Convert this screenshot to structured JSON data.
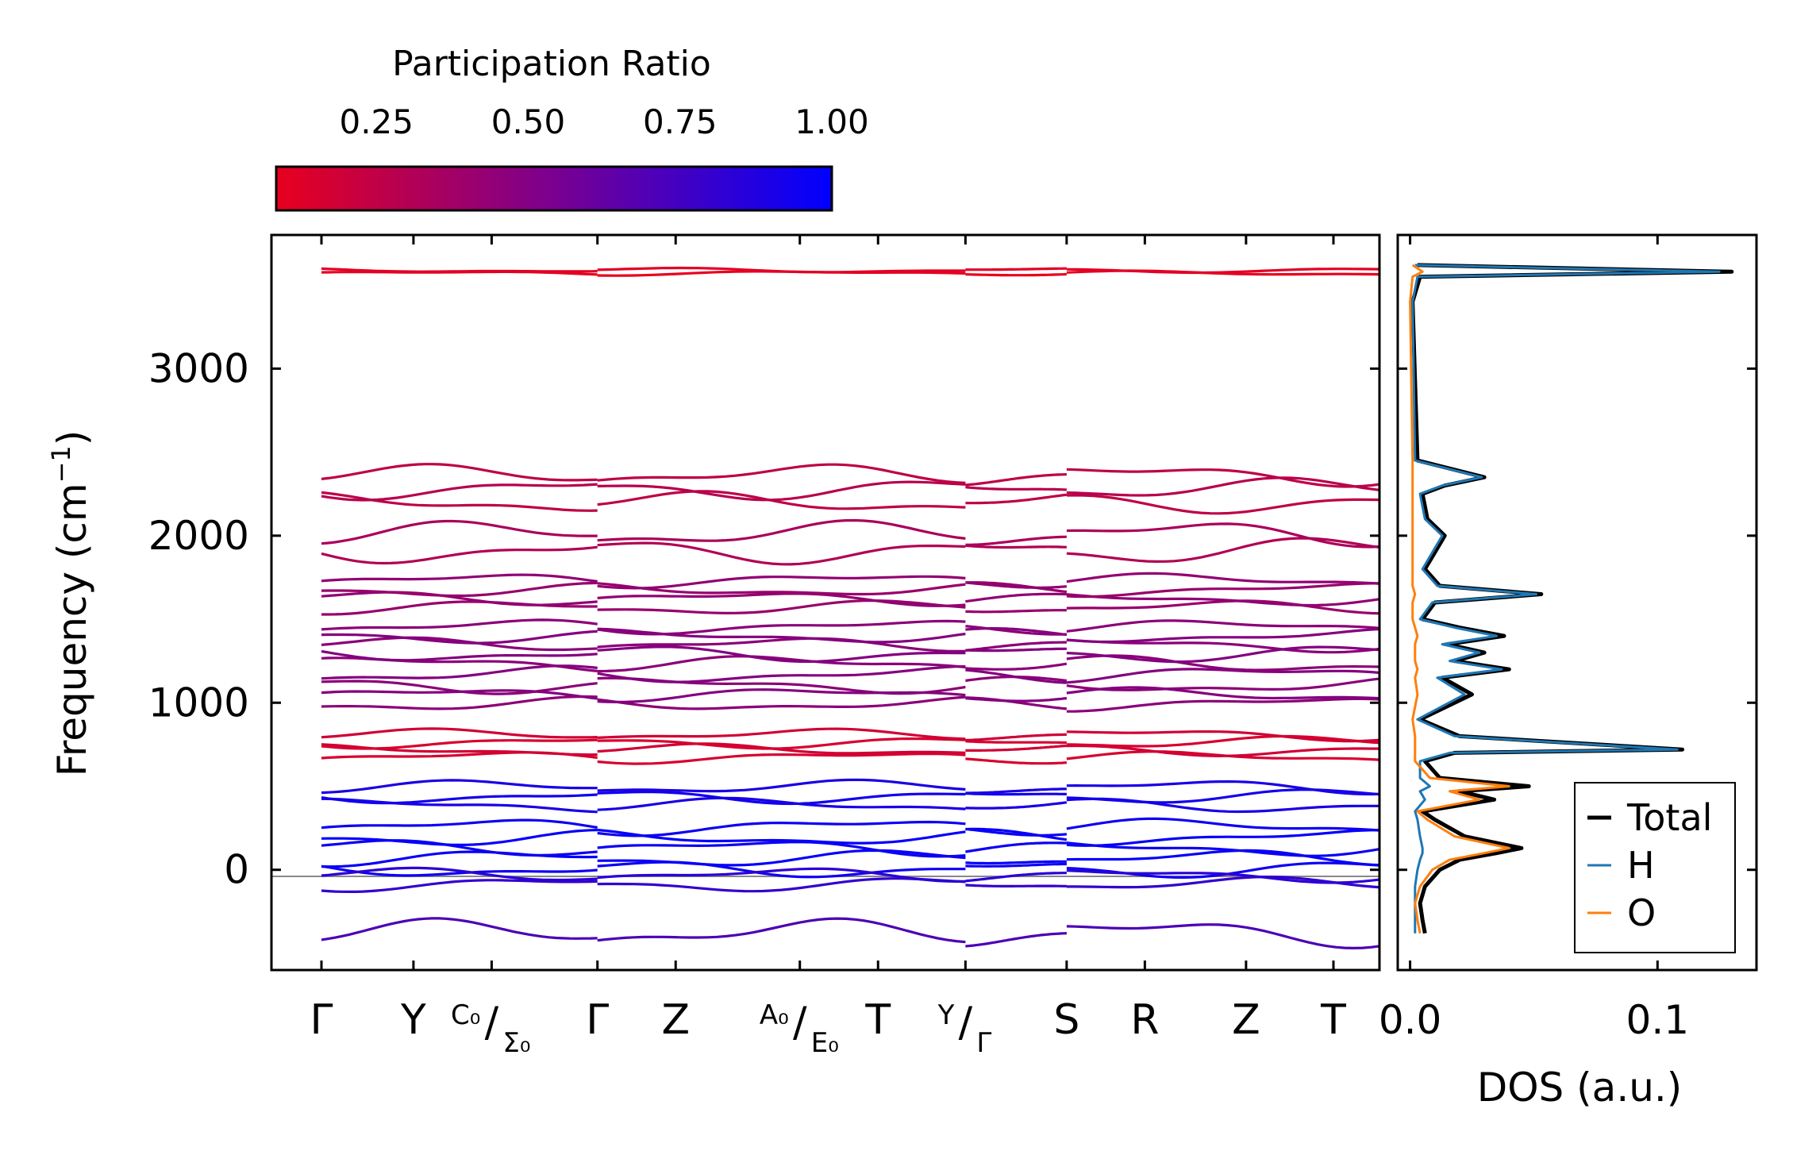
{
  "chart_data": [
    {
      "type": "line",
      "kind": "phonon-band-structure",
      "ylabel": "Frequency (cm⁻¹)",
      "ylabel_base": "Frequency (cm",
      "ylabel_sup": "−1",
      "ylabel_tail": ")",
      "ylim": [
        -600,
        3800
      ],
      "yticks": [
        0,
        1000,
        2000,
        3000
      ],
      "ytick_labels": [
        "0",
        "1000",
        "2000",
        "3000"
      ],
      "segments": [
        {
          "start": 0,
          "end": 3
        },
        {
          "start": 3,
          "end": 7
        },
        {
          "start": 7,
          "end": 8.1
        },
        {
          "start": 8.1,
          "end": 12
        }
      ],
      "kpoints": [
        {
          "pos": 0,
          "main": "Γ"
        },
        {
          "pos": 1,
          "main": "Y"
        },
        {
          "pos": 1.85,
          "num": "C₀",
          "den": "Σ₀"
        },
        {
          "pos": 3,
          "main": "Γ"
        },
        {
          "pos": 3.85,
          "main": "Z"
        },
        {
          "pos": 5.2,
          "num": "A₀",
          "den": "E₀"
        },
        {
          "pos": 6.05,
          "main": "T"
        },
        {
          "pos": 7,
          "num": "Y",
          "den": "Γ"
        },
        {
          "pos": 8.1,
          "main": "S"
        },
        {
          "pos": 8.95,
          "main": "R"
        },
        {
          "pos": 10.05,
          "main": "Z"
        },
        {
          "pos": 11,
          "main": "T"
        }
      ],
      "band_groups": [
        {
          "base": 3580,
          "pr": 0.08,
          "amp": 20,
          "count": 2
        },
        {
          "base": 2280,
          "pr": 0.25,
          "amp": 90,
          "count": 3
        },
        {
          "base": 1960,
          "pr": 0.3,
          "amp": 110,
          "count": 2
        },
        {
          "base": 1650,
          "pr": 0.4,
          "amp": 60,
          "count": 4
        },
        {
          "base": 1400,
          "pr": 0.45,
          "amp": 60,
          "count": 3
        },
        {
          "base": 1200,
          "pr": 0.45,
          "amp": 70,
          "count": 4
        },
        {
          "base": 1020,
          "pr": 0.45,
          "amp": 60,
          "count": 2
        },
        {
          "base": 740,
          "pr": 0.15,
          "amp": 50,
          "count": 4
        },
        {
          "base": 440,
          "pr": 0.9,
          "amp": 60,
          "count": 3
        },
        {
          "base": 130,
          "pr": 0.95,
          "amp": 70,
          "count": 5
        },
        {
          "base": -60,
          "pr": 0.8,
          "amp": 60,
          "count": 2
        },
        {
          "base": -380,
          "pr": 0.7,
          "amp": 120,
          "count": 1
        }
      ]
    },
    {
      "type": "line",
      "kind": "density-of-states",
      "xlabel": "DOS (a.u.)",
      "xlim": [
        -0.005,
        0.14
      ],
      "xticks": [
        0.0,
        0.1
      ],
      "xtick_labels": [
        "0.0",
        "0.1"
      ],
      "legend": [
        "Total",
        "H",
        "O"
      ],
      "legend_position": "lower-right",
      "series": [
        {
          "name": "Total",
          "color": "#000000",
          "freq": [
            -380,
            -300,
            -200,
            -100,
            0,
            60,
            100,
            130,
            200,
            300,
            350,
            420,
            470,
            500,
            550,
            650,
            700,
            720,
            800,
            900,
            1050,
            1150,
            1200,
            1250,
            1300,
            1350,
            1400,
            1450,
            1500,
            1600,
            1650,
            1700,
            1800,
            1900,
            2000,
            2100,
            2250,
            2300,
            2350,
            2450,
            3400,
            3550,
            3580,
            3620
          ],
          "values": [
            0.006,
            0.005,
            0.004,
            0.006,
            0.012,
            0.02,
            0.035,
            0.045,
            0.022,
            0.01,
            0.005,
            0.034,
            0.02,
            0.048,
            0.012,
            0.006,
            0.018,
            0.11,
            0.02,
            0.004,
            0.025,
            0.013,
            0.04,
            0.018,
            0.03,
            0.015,
            0.038,
            0.02,
            0.005,
            0.01,
            0.053,
            0.012,
            0.006,
            0.01,
            0.014,
            0.007,
            0.005,
            0.014,
            0.03,
            0.003,
            0.001,
            0.004,
            0.13,
            0.003
          ]
        },
        {
          "name": "H",
          "color": "#1f77b4",
          "freq": [
            -380,
            -300,
            -200,
            -100,
            0,
            60,
            100,
            130,
            200,
            300,
            350,
            420,
            470,
            500,
            550,
            650,
            700,
            720,
            800,
            900,
            1050,
            1150,
            1200,
            1250,
            1300,
            1350,
            1400,
            1450,
            1500,
            1600,
            1650,
            1700,
            1800,
            1900,
            2000,
            2100,
            2250,
            2300,
            2350,
            2450,
            3400,
            3550,
            3580,
            3620
          ],
          "values": [
            0.002,
            0.002,
            0.002,
            0.002,
            0.003,
            0.004,
            0.005,
            0.005,
            0.004,
            0.003,
            0.002,
            0.006,
            0.004,
            0.008,
            0.004,
            0.004,
            0.016,
            0.108,
            0.018,
            0.003,
            0.022,
            0.011,
            0.037,
            0.016,
            0.028,
            0.013,
            0.035,
            0.018,
            0.004,
            0.009,
            0.051,
            0.011,
            0.005,
            0.009,
            0.013,
            0.006,
            0.004,
            0.013,
            0.029,
            0.002,
            0.001,
            0.003,
            0.125,
            0.002
          ]
        },
        {
          "name": "O",
          "color": "#ff7f0e",
          "freq": [
            -380,
            -300,
            -200,
            -100,
            0,
            60,
            100,
            130,
            200,
            300,
            350,
            420,
            470,
            500,
            550,
            650,
            700,
            720,
            800,
            900,
            1050,
            1150,
            1200,
            1250,
            1300,
            1350,
            1400,
            1450,
            1500,
            1600,
            1650,
            1700,
            1800,
            1900,
            2000,
            2100,
            2250,
            2300,
            2350,
            2450,
            3400,
            3550,
            3580,
            3620
          ],
          "values": [
            0.004,
            0.003,
            0.002,
            0.004,
            0.009,
            0.016,
            0.03,
            0.04,
            0.018,
            0.007,
            0.003,
            0.028,
            0.016,
            0.04,
            0.008,
            0.002,
            0.002,
            0.002,
            0.002,
            0.001,
            0.003,
            0.002,
            0.003,
            0.002,
            0.002,
            0.002,
            0.003,
            0.002,
            0.001,
            0.001,
            0.002,
            0.001,
            0.001,
            0.001,
            0.001,
            0.001,
            0.001,
            0.001,
            0.001,
            0.001,
            0.0,
            0.001,
            0.005,
            0.001
          ]
        }
      ]
    }
  ],
  "colorbar": {
    "title": "Participation Ratio",
    "ticks": [
      0.25,
      0.5,
      0.75,
      1.0
    ],
    "tick_labels": [
      "0.25",
      "0.50",
      "0.75",
      "1.00"
    ],
    "range": [
      0.085,
      1.0
    ],
    "color_low": "#e8001e",
    "color_high": "#0000ff"
  }
}
